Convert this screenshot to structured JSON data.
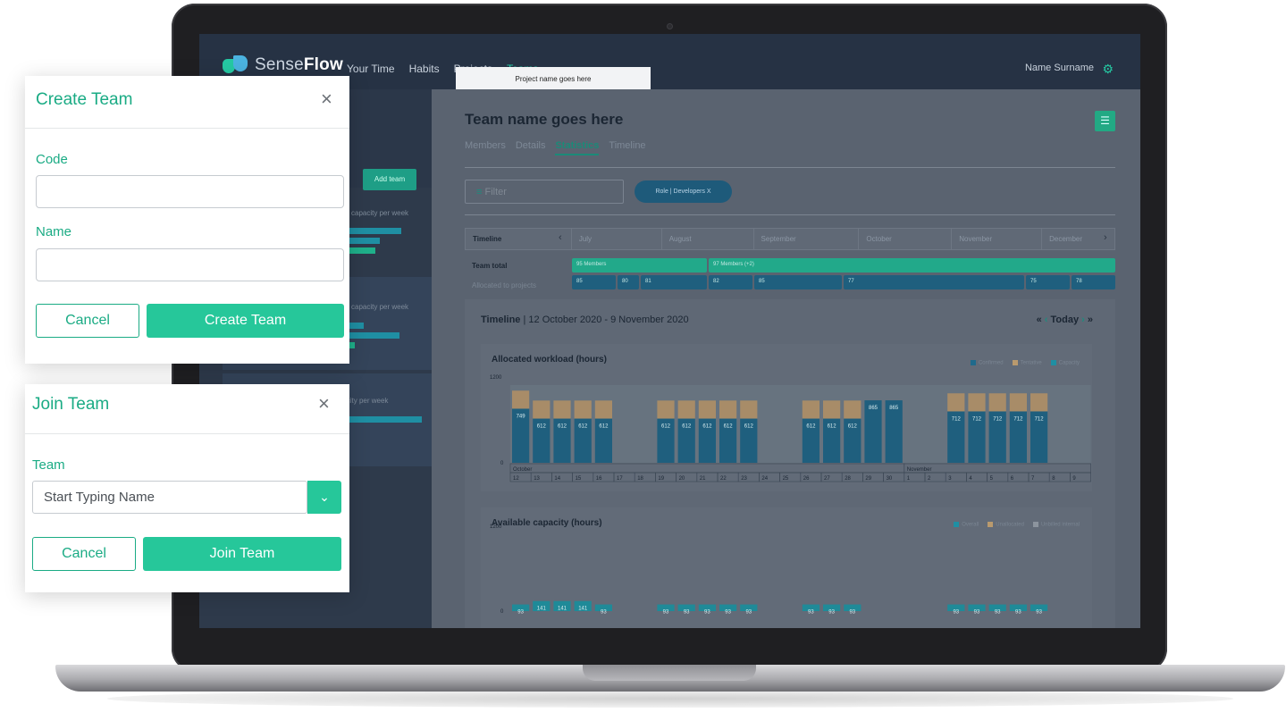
{
  "app": {
    "brand_light": "Sense",
    "brand_bold": "Flow",
    "nav": [
      "Your Time",
      "Habits",
      "Projects",
      "Teams"
    ],
    "user_name": "Name Surname",
    "tab_popup": "Project name goes here",
    "accent": "#26c79a"
  },
  "sidebar": {
    "add_team_label": "Add team",
    "card_texts": [
      "capacity per week",
      "capacity per week",
      "84 members with 1056 hours capacity per week"
    ]
  },
  "main": {
    "team_title": "Team name goes here",
    "tabs": [
      "Members",
      "Details",
      "Statistics",
      "Timeline"
    ],
    "active_tab": "Statistics",
    "filter_label": "Filter",
    "chip_label": "Role | Developers  X",
    "timeline": {
      "header_label": "Timeline",
      "months": [
        "July",
        "August",
        "September",
        "October",
        "November",
        "December"
      ],
      "team_total_label": "Team total",
      "allocated_label": "Allocated to projects",
      "team_total_bars": [
        "95 Members",
        "97 Members (+2)"
      ],
      "allocated_bars": [
        "85",
        "80",
        "81",
        "82",
        "85",
        "77",
        "75",
        "78"
      ]
    },
    "range_label": "Timeline",
    "range_value": "| 12 October 2020 - 9 November 2020",
    "today_label": "Today"
  },
  "chart_data": [
    {
      "type": "bar",
      "title": "Allocated workload (hours)",
      "legend": [
        {
          "name": "Confirmed",
          "color": "#1f6a8c"
        },
        {
          "name": "Tentative",
          "color": "#b99a6e"
        },
        {
          "name": "Capacity",
          "color": "#1f8fa3"
        }
      ],
      "ylim": [
        0,
        1200
      ],
      "yticks": [
        "1200",
        "0"
      ],
      "month_labels": [
        "October",
        "November"
      ],
      "categories": [
        "12",
        "13",
        "14",
        "15",
        "16",
        "17",
        "18",
        "19",
        "20",
        "21",
        "22",
        "23",
        "24",
        "25",
        "26",
        "27",
        "28",
        "29",
        "30",
        "1",
        "2",
        "3",
        "4",
        "5",
        "6",
        "7",
        "8",
        "9"
      ],
      "series": [
        {
          "name": "Confirmed",
          "values": [
            749,
            612,
            612,
            612,
            612,
            0,
            0,
            612,
            612,
            612,
            612,
            612,
            0,
            0,
            612,
            612,
            612,
            865,
            865,
            0,
            0,
            712,
            712,
            712,
            712,
            712,
            0,
            0
          ]
        },
        {
          "name": "Tentative",
          "values": [
            250,
            250,
            250,
            250,
            250,
            0,
            0,
            250,
            250,
            250,
            250,
            250,
            0,
            0,
            250,
            250,
            250,
            0,
            0,
            0,
            0,
            250,
            250,
            250,
            250,
            250,
            0,
            0
          ]
        }
      ],
      "bar_labels": [
        "749",
        "612",
        "612",
        "612",
        "612",
        "",
        "",
        "612",
        "612",
        "612",
        "612",
        "612",
        "",
        "",
        "612",
        "612",
        "612",
        "865",
        "865",
        "",
        "",
        "712",
        "712",
        "712",
        "712",
        "712",
        "",
        ""
      ]
    },
    {
      "type": "bar",
      "title": "Available capacity (hours)",
      "legend": [
        {
          "name": "Overall",
          "color": "#1f8fa3"
        },
        {
          "name": "Unallocated",
          "color": "#b99a6e"
        },
        {
          "name": "Unbilled internal",
          "color": "#8c949e"
        }
      ],
      "ylim": [
        0,
        1200
      ],
      "yticks": [
        "1200",
        "0"
      ],
      "categories": [
        "12",
        "13",
        "14",
        "15",
        "16",
        "17",
        "18",
        "19",
        "20",
        "21",
        "22",
        "23",
        "24",
        "25",
        "26",
        "27",
        "28",
        "29",
        "30",
        "1",
        "2",
        "3",
        "4",
        "5",
        "6",
        "7",
        "8",
        "9"
      ],
      "series": [
        {
          "name": "Overall",
          "values": [
            93,
            141,
            141,
            141,
            93,
            0,
            0,
            93,
            93,
            93,
            93,
            93,
            0,
            0,
            93,
            93,
            93,
            0,
            0,
            0,
            0,
            93,
            93,
            93,
            93,
            93,
            0,
            0
          ]
        }
      ],
      "bar_labels": [
        "93",
        "141",
        "141",
        "141",
        "93",
        "",
        "",
        "93",
        "93",
        "93",
        "93",
        "93",
        "",
        "",
        "93",
        "93",
        "93",
        "",
        "",
        "",
        "",
        "93",
        "93",
        "93",
        "93",
        "93",
        "",
        ""
      ]
    }
  ],
  "create_team": {
    "title": "Create Team",
    "code_label": "Code",
    "code_value": "",
    "name_label": "Name",
    "name_value": "",
    "cancel_label": "Cancel",
    "submit_label": "Create Team"
  },
  "join_team": {
    "title": "Join Team",
    "team_label": "Team",
    "team_placeholder": "Start Typing Name",
    "cancel_label": "Cancel",
    "submit_label": "Join Team"
  }
}
